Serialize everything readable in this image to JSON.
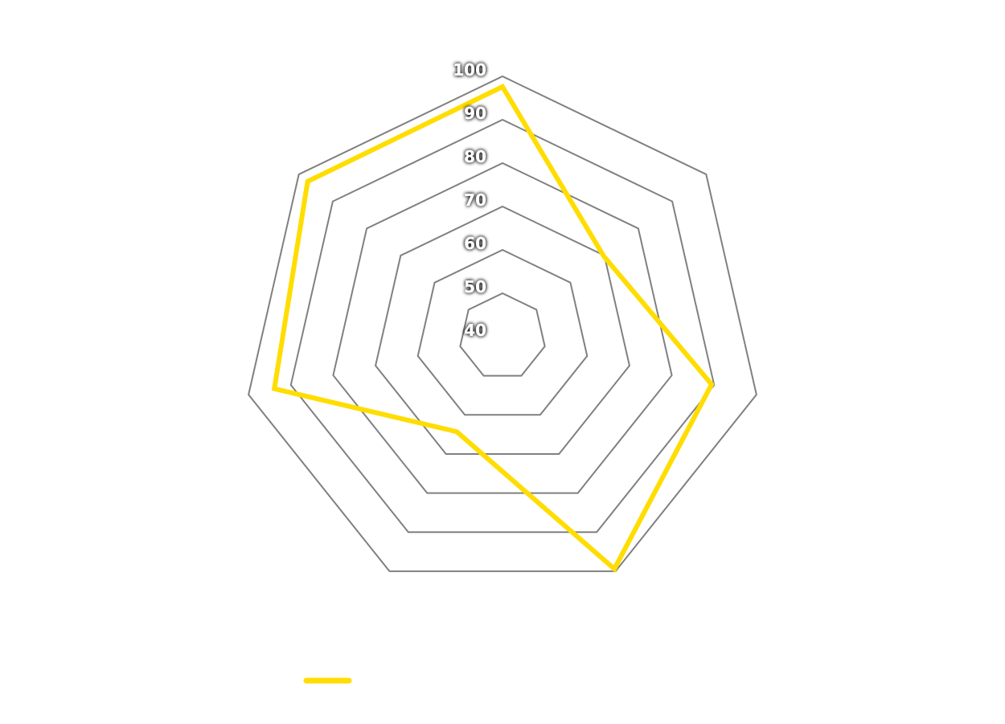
{
  "chart_data": {
    "type": "radar",
    "axes_count": 7,
    "r_range": [
      40,
      100
    ],
    "tick_labels": [
      "40",
      "50",
      "60",
      "70",
      "80",
      "90",
      "100"
    ],
    "tick_values": [
      40,
      50,
      60,
      70,
      80,
      90,
      100
    ],
    "grid": true,
    "grid_color": "#808080",
    "series": [
      {
        "values": [
          97.6,
          69.8,
          89.4,
          99.4,
          64.3,
          93.9,
          97.4
        ],
        "color": "#ffdd00"
      }
    ],
    "legend": {
      "placement": "bottom-left"
    }
  }
}
